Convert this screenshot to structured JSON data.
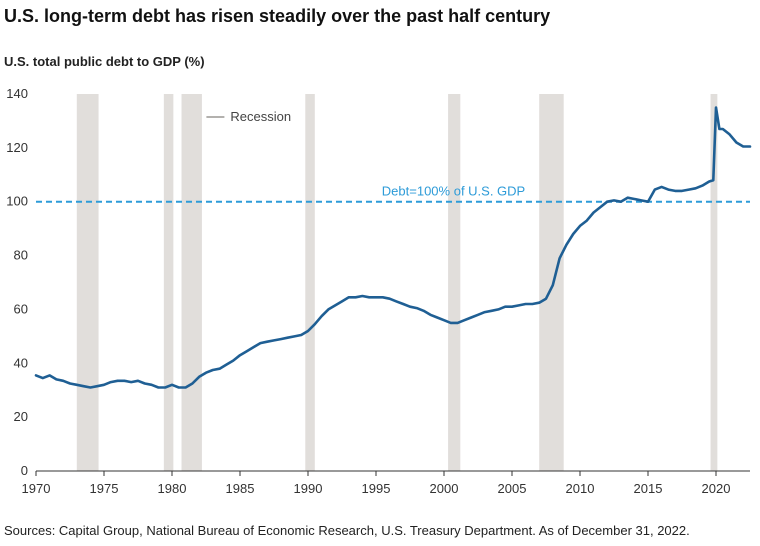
{
  "title": "U.S. long-term debt has risen steadily over the past half century",
  "subtitle": "U.S. total public debt to GDP (%)",
  "source": "Sources: Capital Group, National Bureau of Economic Research, U.S. Treasury Department. As of December 31, 2022.",
  "colors": {
    "line": "#1f5f94",
    "reference": "#2d9bd8",
    "recession": "#e1dedb",
    "axis": "#333333"
  },
  "chart_data": {
    "type": "line",
    "xlim": [
      1970,
      2022.5
    ],
    "ylim": [
      0,
      140
    ],
    "x_ticks": [
      1970,
      1975,
      1980,
      1985,
      1990,
      1995,
      2000,
      2005,
      2010,
      2015,
      2020
    ],
    "y_ticks": [
      0,
      20,
      40,
      60,
      80,
      100,
      120,
      140
    ],
    "grid": false,
    "legend": {
      "label": "Recession",
      "placement": "top-left"
    },
    "reference_line": {
      "value": 100,
      "label": "Debt=100% of U.S. GDP"
    },
    "recessions": [
      [
        1973.0,
        1974.6
      ],
      [
        1979.4,
        1980.1
      ],
      [
        1980.7,
        1982.2
      ],
      [
        1989.8,
        1990.5
      ],
      [
        2000.3,
        2001.2
      ],
      [
        2007.0,
        2008.8
      ],
      [
        2019.6,
        2020.1
      ]
    ],
    "series": [
      {
        "x": [
          1970,
          1970.5,
          1971,
          1971.5,
          1972,
          1972.5,
          1973,
          1973.5,
          1974,
          1974.5,
          1975,
          1975.5,
          1976,
          1976.5,
          1977,
          1977.5,
          1978,
          1978.5,
          1979,
          1979.5,
          1980,
          1980.5,
          1981,
          1981.5,
          1982,
          1982.5,
          1983,
          1983.5,
          1984,
          1984.5,
          1985,
          1985.5,
          1986,
          1986.5,
          1987,
          1987.5,
          1988,
          1988.5,
          1989,
          1989.5,
          1990,
          1990.5,
          1991,
          1991.5,
          1992,
          1992.5,
          1993,
          1993.5,
          1994,
          1994.5,
          1995,
          1995.5,
          1996,
          1996.5,
          1997,
          1997.5,
          1998,
          1998.5,
          1999,
          1999.5,
          2000,
          2000.5,
          2001,
          2001.5,
          2002,
          2002.5,
          2003,
          2003.5,
          2004,
          2004.5,
          2005,
          2005.5,
          2006,
          2006.5,
          2007,
          2007.5,
          2008,
          2008.5,
          2009,
          2009.5,
          2010,
          2010.5,
          2011,
          2011.5,
          2012,
          2012.5,
          2013,
          2013.5,
          2014,
          2014.5,
          2015,
          2015.5,
          2016,
          2016.5,
          2017,
          2017.5,
          2018,
          2018.5,
          2019,
          2019.5,
          2019.8,
          2020,
          2020.25,
          2020.5,
          2021,
          2021.5,
          2022,
          2022.5
        ],
        "values": [
          35.5,
          34.5,
          35.5,
          34,
          33.5,
          32.5,
          32,
          31.5,
          31,
          31.5,
          32,
          33,
          33.5,
          33.5,
          33,
          33.5,
          32.5,
          32,
          31,
          31,
          32,
          31,
          31,
          32.5,
          35,
          36.5,
          37.5,
          38,
          39.5,
          41,
          43,
          44.5,
          46,
          47.5,
          48,
          48.5,
          49,
          49.5,
          50,
          50.5,
          52,
          54.5,
          57.5,
          60,
          61.5,
          63,
          64.5,
          64.5,
          65,
          64.5,
          64.5,
          64.5,
          64,
          63,
          62,
          61,
          60.5,
          59.5,
          58,
          57,
          56,
          55,
          55,
          56,
          57,
          58,
          59,
          59.5,
          60,
          61,
          61,
          61.5,
          62,
          62,
          62.5,
          64,
          69,
          79,
          84,
          88,
          91,
          93,
          96,
          98,
          100,
          100.5,
          100,
          101.5,
          101,
          100.5,
          100,
          104.5,
          105.5,
          104.5,
          104,
          104,
          104.5,
          105,
          106,
          107.5,
          108,
          135,
          127,
          127,
          125,
          122,
          120.5,
          120.5
        ]
      }
    ]
  }
}
